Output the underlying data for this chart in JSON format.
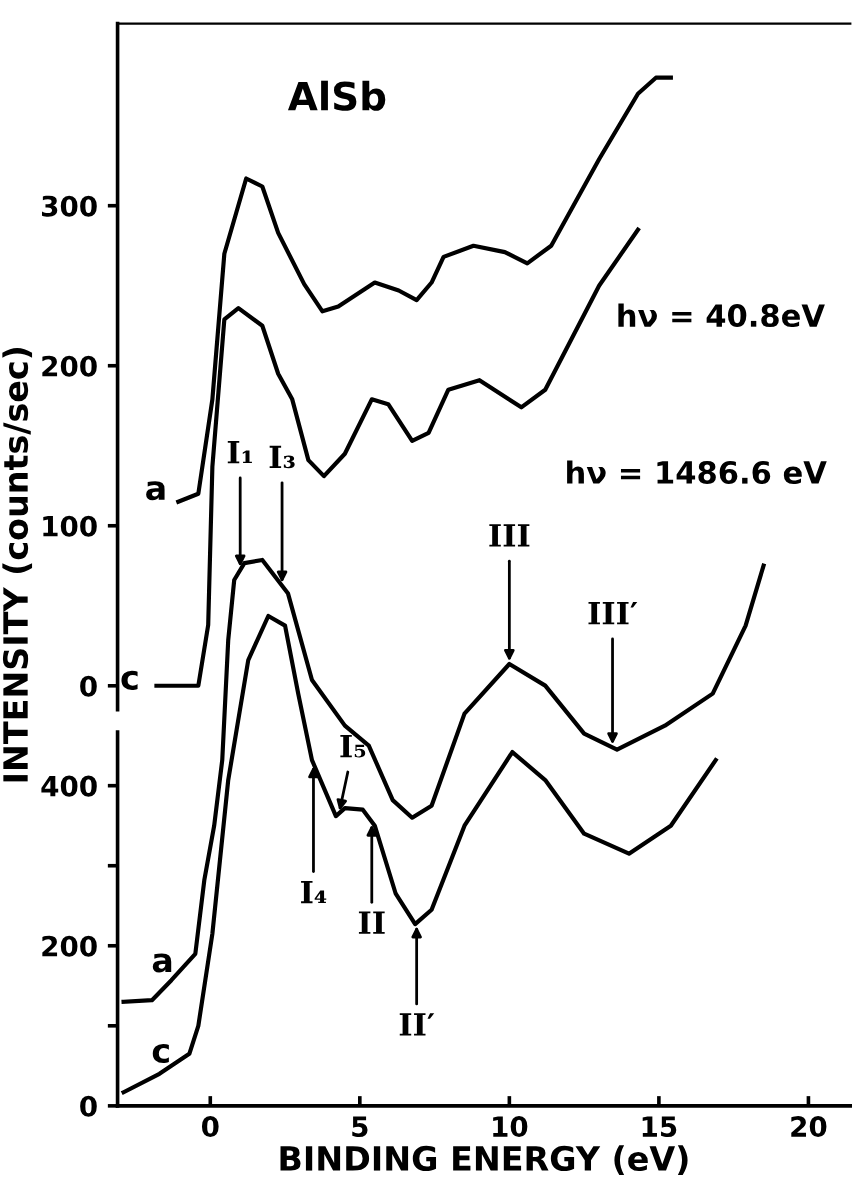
{
  "chart_data": {
    "type": "line",
    "title": "AlSb",
    "xlabel": "BINDING ENERGY (eV)",
    "ylabel": "INTENSITY (counts/sec)",
    "xlim": [
      -3.1,
      21.4
    ],
    "xticks": [
      0,
      5,
      10,
      15,
      20
    ],
    "ylim": [
      0,
      1352
    ],
    "yticks": [
      0,
      {
        "value": 100,
        "label": null
      },
      200,
      {
        "value": 300,
        "label": null
      },
      400
    ],
    "y2lim": [
      -262.5,
      413.75
    ],
    "y2ticks": [
      0,
      100,
      200,
      300
    ],
    "grid": false,
    "legend": false,
    "marker": "none",
    "line_style": "solid",
    "series": [
      {
        "name": "a",
        "color": "#000000",
        "axis": "y2",
        "x": [
          -1.07,
          -0.4,
          0.07,
          0.47,
          1.2,
          1.74,
          2.27,
          3.14,
          3.75,
          4.28,
          5.5,
          6.3,
          6.9,
          7.4,
          7.8,
          8.8,
          9.85,
          10.6,
          11.4,
          13.0,
          14.3,
          14.9,
          15.4
        ],
        "values": [
          115,
          120,
          179,
          270,
          317,
          312,
          283,
          251,
          234,
          237,
          252,
          247,
          241,
          252,
          268,
          275,
          271,
          264,
          275,
          329,
          370,
          380,
          380
        ]
      },
      {
        "name": "c",
        "color": "#000000",
        "axis": "y2",
        "x": [
          -1.8,
          -0.4,
          -0.07,
          0.07,
          0.47,
          0.94,
          1.74,
          2.27,
          2.74,
          3.28,
          3.8,
          4.5,
          5.4,
          5.95,
          6.75,
          7.3,
          7.96,
          9.0,
          10.4,
          11.2,
          13.0,
          14.3
        ],
        "values": [
          0,
          0,
          38,
          137,
          229,
          236,
          225,
          195,
          179,
          141,
          131,
          145,
          179,
          176,
          153,
          158,
          185,
          191,
          174,
          185,
          250,
          285
        ]
      },
      {
        "name": "a",
        "color": "#000000",
        "x": [
          -2.9,
          -1.95,
          -1.3,
          -0.5,
          -0.2,
          0.13,
          0.4,
          0.6,
          0.8,
          1.14,
          1.74,
          2.6,
          3.4,
          4.5,
          5.3,
          6.1,
          6.75,
          7.4,
          8.5,
          10.0,
          11.2,
          12.5,
          13.6,
          15.2,
          16.8,
          17.9,
          18.5
        ],
        "values": [
          130,
          132,
          157,
          190,
          282,
          350,
          432,
          582,
          657,
          678,
          682,
          640,
          532,
          475,
          450,
          382,
          360,
          375,
          490,
          552,
          525,
          465,
          445,
          475,
          515,
          600,
          675
        ]
      },
      {
        "name": "c",
        "color": "#000000",
        "x": [
          -2.9,
          -1.7,
          -0.7,
          -0.4,
          0.07,
          0.6,
          1.27,
          1.94,
          2.5,
          2.94,
          3.4,
          4.2,
          4.5,
          5.1,
          5.5,
          6.2,
          6.85,
          7.4,
          8.5,
          10.1,
          11.2,
          12.5,
          14.0,
          15.4,
          16.9
        ],
        "values": [
          17,
          40,
          65,
          100,
          215,
          407,
          557,
          612,
          600,
          515,
          432,
          362,
          372,
          370,
          350,
          265,
          227,
          245,
          350,
          442,
          407,
          340,
          315,
          350,
          432
        ]
      }
    ],
    "annotations": [
      {
        "text": "I₁",
        "x": 1.0,
        "y": 670
      },
      {
        "text": "I₃",
        "x": 2.4,
        "y": 650
      },
      {
        "text": "I₅",
        "x": 4.3,
        "y": 365
      },
      {
        "text": "I₄",
        "x": 3.45,
        "y": 428
      },
      {
        "text": "II",
        "x": 5.4,
        "y": 355
      },
      {
        "text": "II′",
        "x": 6.9,
        "y": 228
      },
      {
        "text": "III",
        "x": 10.0,
        "y": 552
      },
      {
        "text": "III′",
        "x": 13.45,
        "y": 448
      },
      "hν = 40.8eV",
      "hν = 1486.6 eV"
    ]
  }
}
